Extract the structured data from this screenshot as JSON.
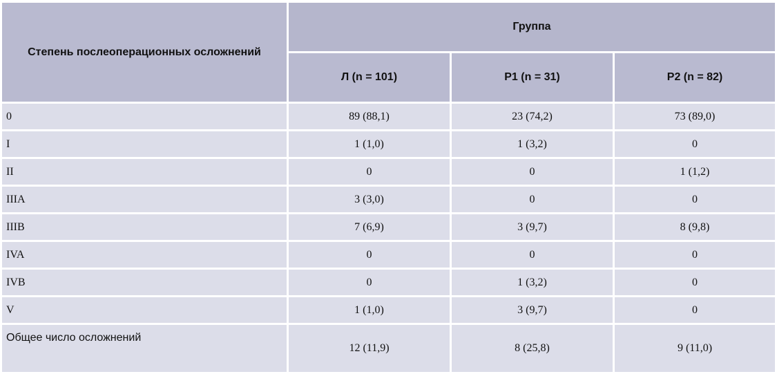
{
  "table": {
    "header": {
      "row_label": "Степень послеоперационных осложнений",
      "group": "Группа",
      "columns": [
        "Л (n = 101)",
        "Р1 (n = 31)",
        "Р2 (n = 82)"
      ]
    },
    "rows": [
      [
        "0",
        "89 (88,1)",
        "23 (74,2)",
        "73 (89,0)"
      ],
      [
        "I",
        "1 (1,0)",
        "1 (3,2)",
        "0"
      ],
      [
        "II",
        "0",
        "0",
        "1 (1,2)"
      ],
      [
        "IIIA",
        "3 (3,0)",
        "0",
        "0"
      ],
      [
        "IIIB",
        "7 (6,9)",
        "3 (9,7)",
        "8 (9,8)"
      ],
      [
        "IVA",
        "0",
        "0",
        "0"
      ],
      [
        "IVB",
        "0",
        "1 (3,2)",
        "0"
      ],
      [
        "V",
        "1 (1,0)",
        "3 (9,7)",
        "0"
      ],
      [
        "Общее число осложнений",
        "12 (11,9)",
        "8 (25,8)",
        "9 (11,0)"
      ]
    ]
  }
}
